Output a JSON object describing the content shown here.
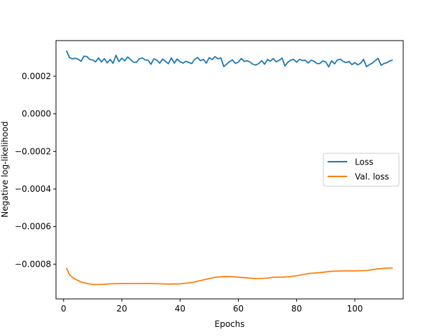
{
  "chart_data": {
    "type": "line",
    "title": "",
    "xlabel": "Epochs",
    "ylabel": "Negative log-likelihood",
    "xlim": [
      -2.6,
      116.6
    ],
    "ylim": [
      -0.000985,
      0.00039
    ],
    "xticks": [
      0,
      20,
      40,
      60,
      80,
      100
    ],
    "xtick_labels": [
      "0",
      "20",
      "40",
      "60",
      "80",
      "100"
    ],
    "yticks": [
      0.0002,
      0.0,
      -0.0002,
      -0.0004,
      -0.0006,
      -0.0008
    ],
    "ytick_labels": [
      "0.0002",
      "0.0000",
      "−0.0002",
      "−0.0004",
      "−0.0006",
      "−0.0008"
    ],
    "grid": false,
    "legend_position": "center-right",
    "series": [
      {
        "name": "Loss",
        "color": "#1f77b4",
        "x_start": 1,
        "x_step": 1,
        "values": [
          0.000337,
          0.0003,
          0.000293,
          0.000296,
          0.000291,
          0.00028,
          0.000307,
          0.000305,
          0.00029,
          0.000287,
          0.000277,
          0.000298,
          0.000276,
          0.000294,
          0.000271,
          0.00029,
          0.000269,
          0.000312,
          0.000278,
          0.000296,
          0.000282,
          0.000303,
          0.000289,
          0.000275,
          0.000274,
          0.000293,
          0.000298,
          0.000287,
          0.000286,
          0.000264,
          0.000293,
          0.000286,
          0.00027,
          0.000292,
          0.000279,
          0.000267,
          0.000298,
          0.00027,
          0.000292,
          0.000277,
          0.00027,
          0.00028,
          0.000274,
          0.000268,
          0.00029,
          0.0003,
          0.000283,
          0.00029,
          0.00027,
          0.000299,
          0.000289,
          0.000305,
          0.000293,
          0.000298,
          0.000252,
          0.000265,
          0.000279,
          0.000287,
          0.000268,
          0.000275,
          0.000295,
          0.000279,
          0.000283,
          0.000276,
          0.000264,
          0.00026,
          0.000268,
          0.000283,
          0.000264,
          0.000289,
          0.000281,
          0.000294,
          0.000277,
          0.000285,
          0.000297,
          0.000255,
          0.000275,
          0.000286,
          0.00029,
          0.000275,
          0.00029,
          0.000284,
          0.000285,
          0.000271,
          0.000286,
          0.00028,
          0.000268,
          0.000268,
          0.000282,
          0.000277,
          0.00025,
          0.000283,
          0.000266,
          0.000287,
          0.000291,
          0.000279,
          0.000273,
          0.000279,
          0.000262,
          0.000273,
          0.000261,
          0.00027,
          0.00029,
          0.000251,
          0.000262,
          0.00027,
          0.000283,
          0.000295,
          0.000259,
          0.000268,
          0.000272,
          0.000282,
          0.000286
        ]
      },
      {
        "name": "Val. loss",
        "color": "#ff7f0e",
        "x": [
          1,
          2,
          3,
          4,
          6,
          8,
          10,
          12,
          14,
          16,
          18,
          20,
          24,
          28,
          32,
          36,
          40,
          44,
          48,
          52,
          55,
          58,
          62,
          66,
          68,
          70,
          72,
          74,
          76,
          80,
          84,
          88,
          92,
          96,
          100,
          104,
          108,
          110,
          113
        ],
        "values": [
          -0.00082,
          -0.000855,
          -0.00087,
          -0.00088,
          -0.000895,
          -0.000903,
          -0.000908,
          -0.000908,
          -0.000907,
          -0.000905,
          -0.000904,
          -0.000903,
          -0.000903,
          -0.000903,
          -0.000904,
          -0.000906,
          -0.000905,
          -0.000898,
          -0.000884,
          -0.00087,
          -0.000866,
          -0.000867,
          -0.000872,
          -0.000877,
          -0.000876,
          -0.000874,
          -0.00087,
          -0.000869,
          -0.000869,
          -0.000862,
          -0.00085,
          -0.000845,
          -0.000838,
          -0.000836,
          -0.000836,
          -0.000834,
          -0.000825,
          -0.000822,
          -0.00082
        ]
      }
    ]
  }
}
